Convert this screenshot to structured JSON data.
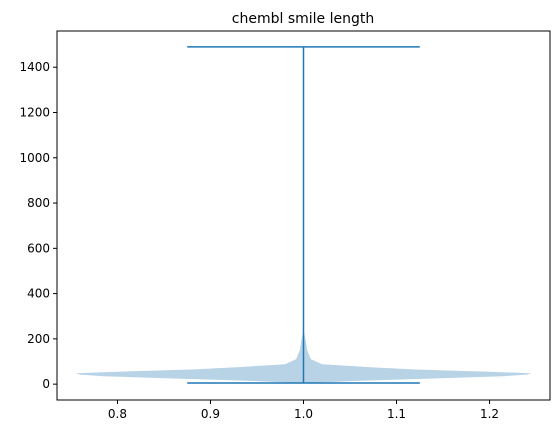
{
  "chart_data": {
    "type": "violin",
    "title": "chembl smile length",
    "xlabel": "",
    "ylabel": "",
    "xlim": [
      0.735,
      1.265
    ],
    "ylim": [
      -70,
      1560
    ],
    "x_ticks": [
      0.8,
      0.9,
      1.0,
      1.1,
      1.2
    ],
    "x_tick_labels": [
      "0.8",
      "0.9",
      "1.0",
      "1.1",
      "1.2"
    ],
    "y_ticks": [
      0,
      200,
      400,
      600,
      800,
      1000,
      1200,
      1400
    ],
    "y_tick_labels": [
      "0",
      "200",
      "400",
      "600",
      "800",
      "1000",
      "1200",
      "1400"
    ],
    "grid": false,
    "violin": {
      "position": 1.0,
      "min": 5,
      "max": 1490,
      "cap_half_width": 0.125,
      "body_color": "#b8d3e6",
      "line_color": "#1f77b4",
      "density_profile": [
        {
          "y": 5,
          "half_width": 0.005
        },
        {
          "y": 15,
          "half_width": 0.06
        },
        {
          "y": 25,
          "half_width": 0.14
        },
        {
          "y": 35,
          "half_width": 0.215
        },
        {
          "y": 42,
          "half_width": 0.24
        },
        {
          "y": 48,
          "half_width": 0.245
        },
        {
          "y": 55,
          "half_width": 0.2
        },
        {
          "y": 65,
          "half_width": 0.12
        },
        {
          "y": 75,
          "half_width": 0.07
        },
        {
          "y": 88,
          "half_width": 0.02
        },
        {
          "y": 110,
          "half_width": 0.008
        },
        {
          "y": 150,
          "half_width": 0.004
        },
        {
          "y": 200,
          "half_width": 0.002
        },
        {
          "y": 240,
          "half_width": 0.0
        }
      ]
    }
  }
}
